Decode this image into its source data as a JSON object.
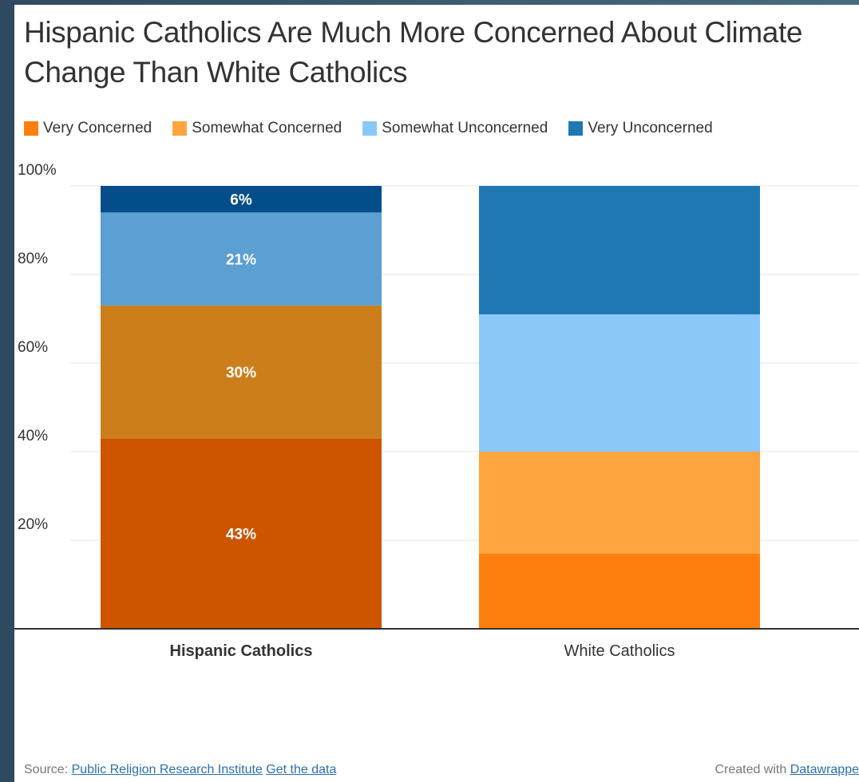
{
  "chart_data": {
    "type": "bar",
    "stacked": true,
    "title": "Hispanic Catholics Are Much More Concerned About Climate Change Than White Catholics",
    "categories": [
      "Hispanic Catholics",
      "White Catholics"
    ],
    "series": [
      {
        "name": "Very Concerned",
        "values": [
          43,
          17
        ],
        "color": "#cd5500",
        "color_alt": "#ff7f0e",
        "labels": [
          "43%",
          ""
        ]
      },
      {
        "name": "Somewhat Concerned",
        "values": [
          30,
          23
        ],
        "color": "#cc7e1a",
        "color_alt": "#ffa53f",
        "labels": [
          "30%",
          ""
        ]
      },
      {
        "name": "Somewhat Unconcerned",
        "values": [
          21,
          31
        ],
        "color": "#5b9fd3",
        "color_alt": "#8ac8fa",
        "labels": [
          "21%",
          ""
        ]
      },
      {
        "name": "Very Unconcerned",
        "values": [
          6,
          29
        ],
        "color": "#034e8a",
        "color_alt": "#1f77b4",
        "labels": [
          "6%",
          ""
        ]
      }
    ],
    "legend_colors": [
      "#ff7f0e",
      "#ffa53f",
      "#8ac8fa",
      "#1f77b4"
    ],
    "yticks": [
      "20%",
      "40%",
      "60%",
      "80%",
      "100%"
    ],
    "ylim": [
      0,
      100
    ],
    "legend_position": "top-left",
    "grid": true
  },
  "footer": {
    "source_prefix": "Source:",
    "source_link": "Public Religion Research Institute",
    "get_data": "Get the data",
    "created_with": "Created with",
    "tool_link": "Datawrappe"
  }
}
